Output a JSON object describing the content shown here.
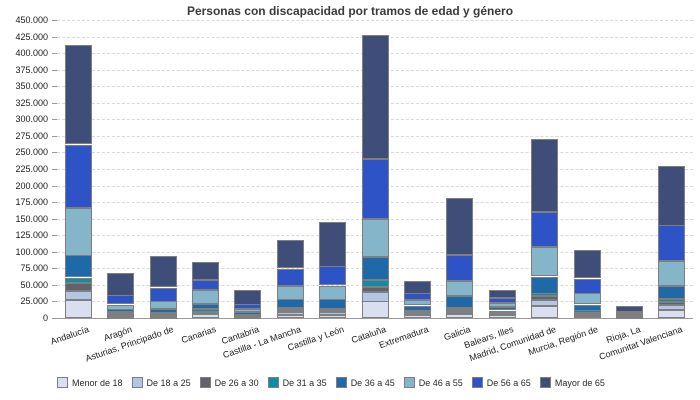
{
  "chart_data": {
    "type": "bar",
    "stacked": true,
    "title": "Personas con discapacidad por tramos de edad y género",
    "xlabel": "",
    "ylabel": "",
    "ylim": [
      0,
      450000
    ],
    "y_tick_step": 25000,
    "y_tick_labels": [
      "0",
      "25.000",
      "50.000",
      "75.000",
      "100.000",
      "125.000",
      "150.000",
      "175.000",
      "200.000",
      "225.000",
      "250.000",
      "275.000",
      "300.000",
      "325.000",
      "350.000",
      "375.000",
      "400.000",
      "425.000",
      "450.000"
    ],
    "grid": "horizontal-dashed",
    "legend_position": "bottom",
    "categories": [
      "Andalucía",
      "Aragón",
      "Asturias, Principado de",
      "Canarias",
      "Cantabria",
      "Castilla - La Mancha",
      "Castilla y León",
      "Cataluña",
      "Extremadura",
      "Galicia",
      "Balears, Illes",
      "Madrid, Comunidad de",
      "Murcia, Región de",
      "Rioja, La",
      "Comunitat Valenciana"
    ],
    "series": [
      {
        "name": "Menor de 18",
        "color": "#d9def0",
        "values": [
          27000,
          2000,
          2000,
          5500,
          1500,
          5000,
          4000,
          25000,
          5000,
          6000,
          4000,
          17500,
          3000,
          1000,
          11500
        ]
      },
      {
        "name": "De 18 a 25",
        "color": "#b4c6e4",
        "values": [
          13500,
          2000,
          2000,
          2500,
          1000,
          4000,
          4500,
          15000,
          2500,
          3000,
          2500,
          9000,
          2500,
          500,
          7500
        ]
      },
      {
        "name": "De 26 a 30",
        "color": "#60646a",
        "values": [
          12500,
          2500,
          1500,
          2000,
          1000,
          2500,
          2500,
          7500,
          2000,
          2500,
          2500,
          6000,
          2000,
          500,
          5000
        ]
      },
      {
        "name": "De 31 a 35",
        "color": "#148ba4",
        "values": [
          8000,
          2000,
          1500,
          4000,
          1000,
          3500,
          2500,
          10000,
          2000,
          3500,
          2000,
          5000,
          4000,
          500,
          5000
        ]
      },
      {
        "name": "De 36 a 45",
        "color": "#2069a8",
        "values": [
          33500,
          4500,
          6000,
          7000,
          4500,
          13500,
          15000,
          35000,
          7000,
          17500,
          5000,
          25000,
          8500,
          1500,
          20000
        ]
      },
      {
        "name": "De 46 a 55",
        "color": "#85b5c9",
        "values": [
          72000,
          7000,
          12500,
          21000,
          4500,
          20500,
          20500,
          57500,
          8000,
          23000,
          6500,
          44500,
          17000,
          1500,
          37000
        ]
      },
      {
        "name": "De 56 a 65",
        "color": "#2d53c6",
        "values": [
          95000,
          14000,
          20500,
          15000,
          7500,
          25500,
          29000,
          90000,
          10500,
          39500,
          7500,
          53000,
          22000,
          3000,
          54000
        ]
      },
      {
        "name": "Mayor de 65",
        "color": "#3e4e78",
        "values": [
          150000,
          34000,
          47000,
          27500,
          22000,
          43000,
          67500,
          188000,
          19000,
          86000,
          12000,
          110000,
          43000,
          9500,
          90000
        ]
      }
    ]
  },
  "colors": {
    "bar_border": "#7f7f7f",
    "axis_line": "#9a9a9a",
    "gridline": "#d9d9d9",
    "title_text": "#3a3a3a",
    "label_text": "#1a1a1a",
    "background": "#ffffff"
  }
}
